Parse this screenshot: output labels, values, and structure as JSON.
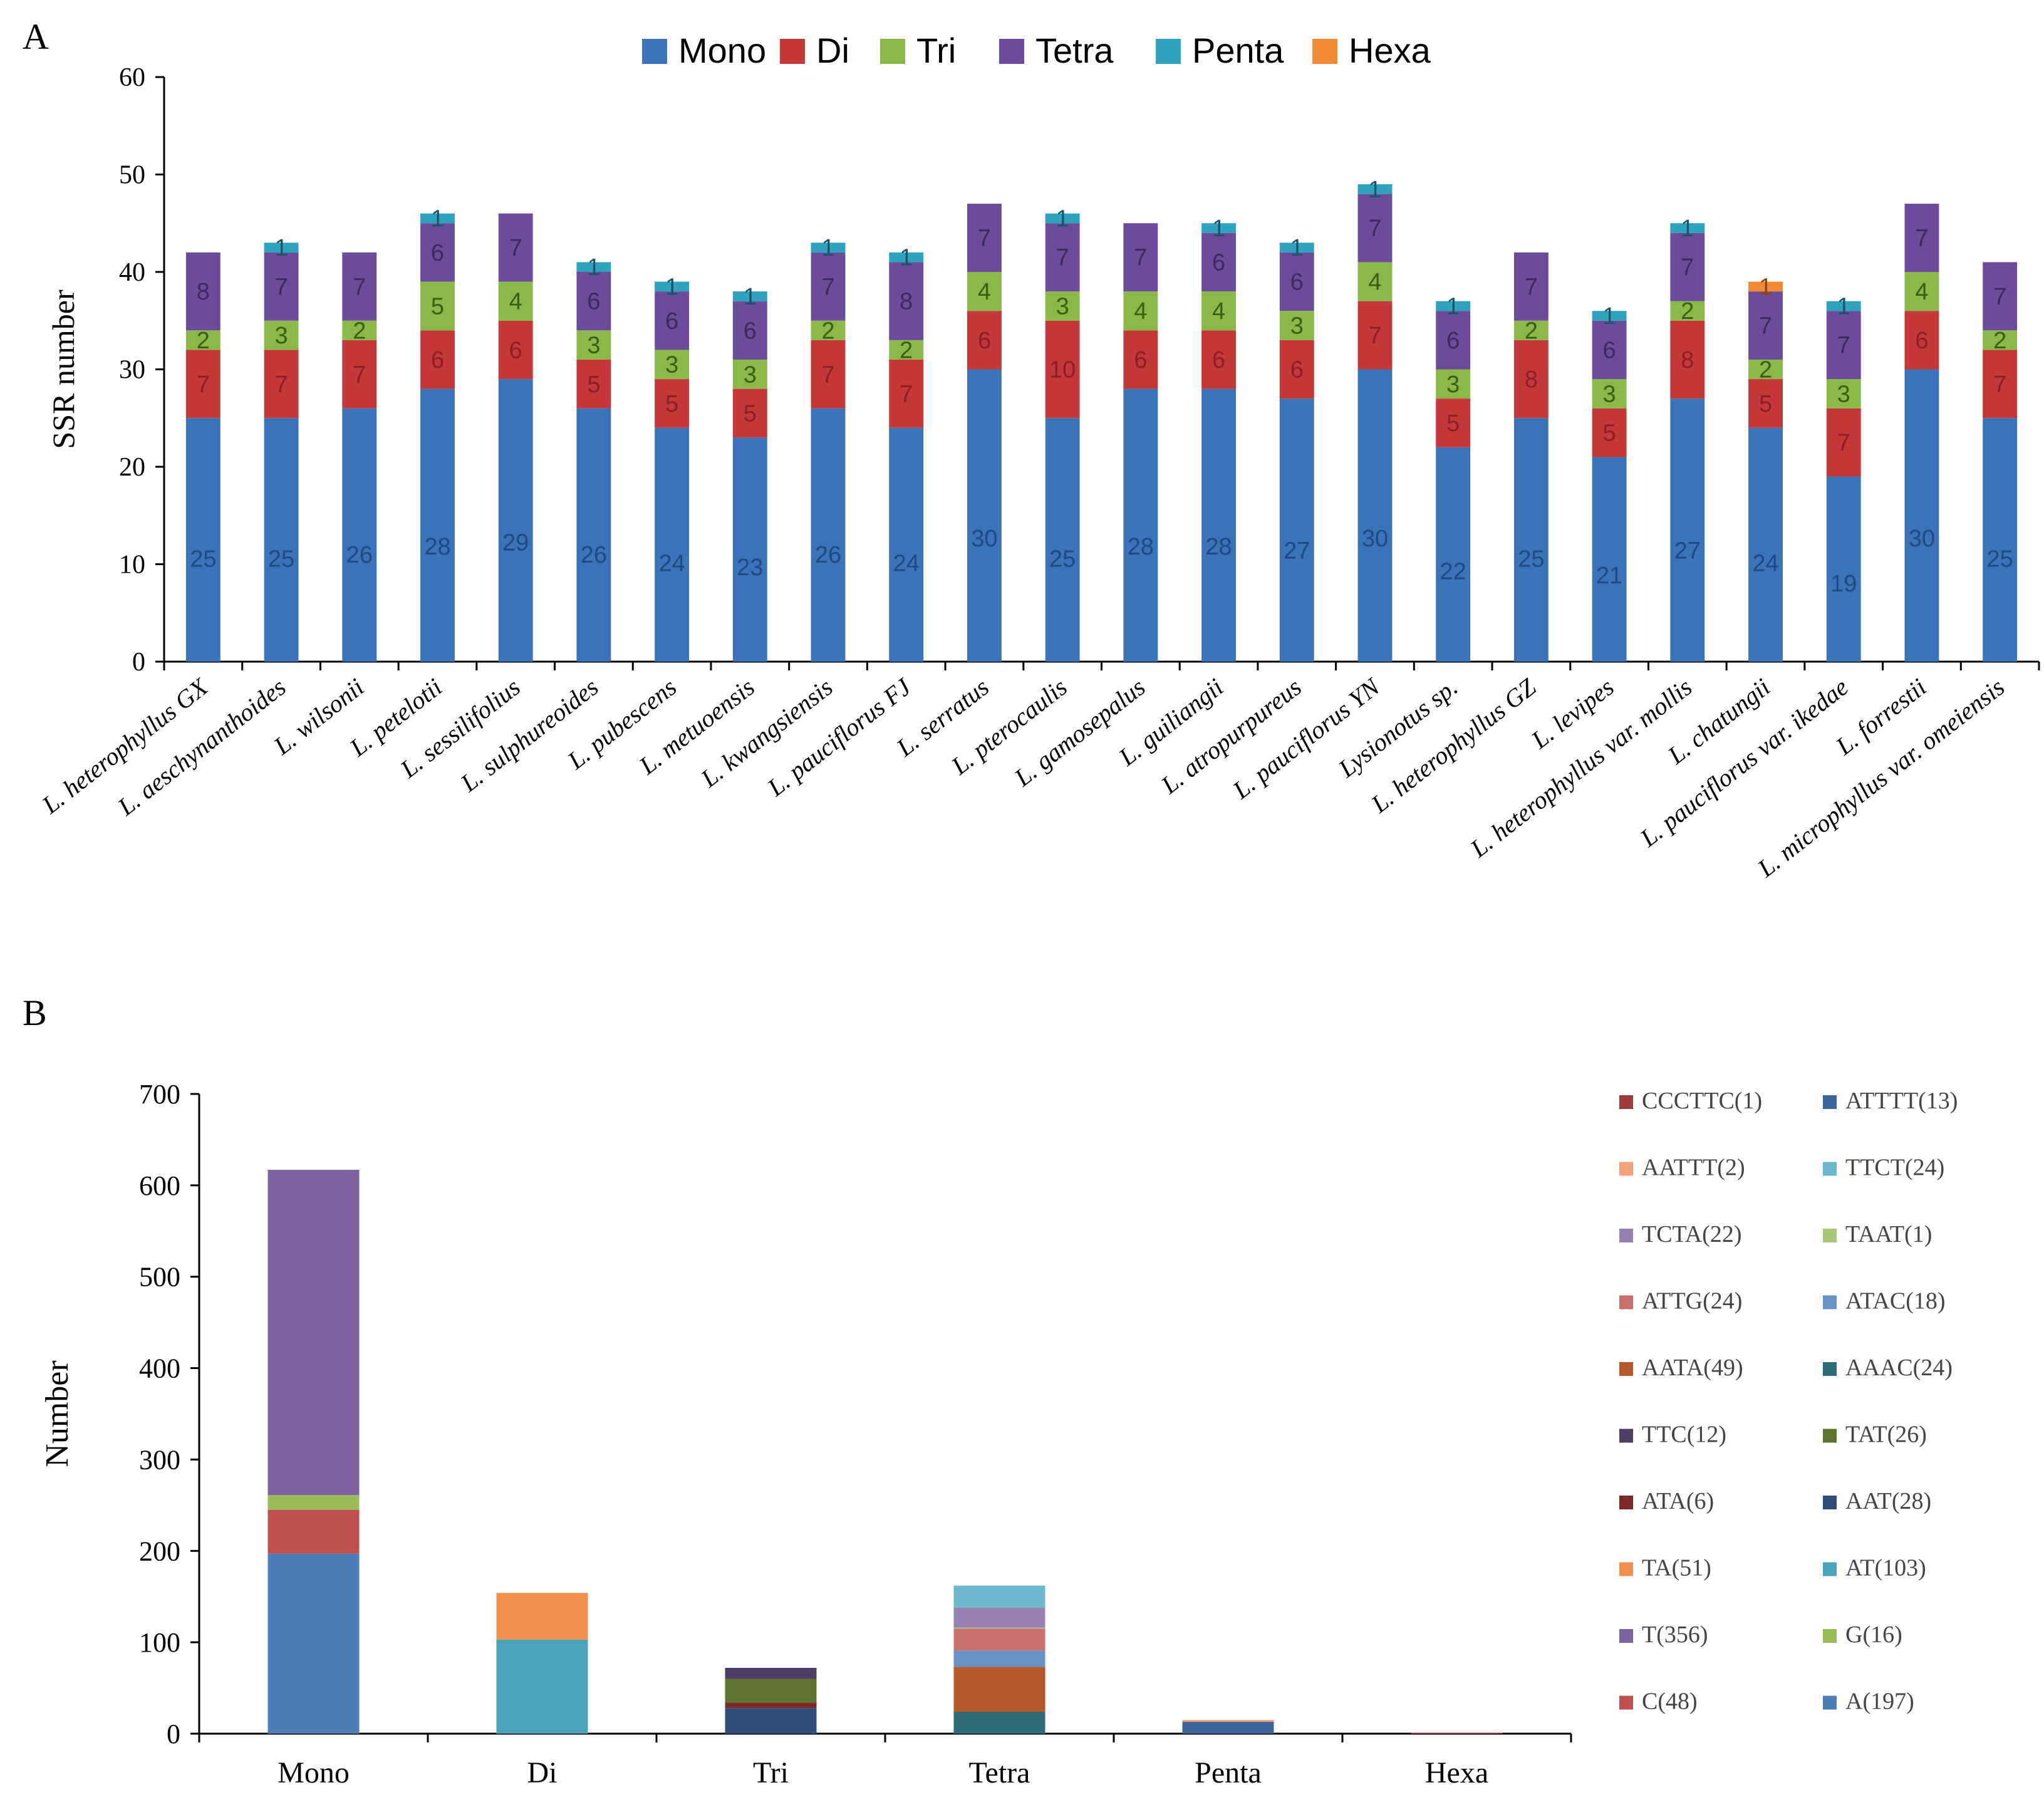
{
  "panel_labels": {
    "a": "A",
    "b": "B"
  },
  "chart_data": [
    {
      "type": "bar",
      "stacked": true,
      "panel": "A",
      "title": "",
      "xlabel": "",
      "ylabel": "SSR number",
      "ylim": [
        0,
        60
      ],
      "yticks": [
        0,
        10,
        20,
        30,
        40,
        50,
        60
      ],
      "legend_position": "top-center",
      "categories": [
        "L. heterophyllus GX",
        "L. aeschynanthoides",
        "L. wilsonii",
        "L. petelotii",
        "L. sessilifolius",
        "L. sulphureoides",
        "L. pubescens",
        "L. metuoensis",
        "L. kwangsiensis",
        "L. pauciflorus FJ",
        "L. serratus",
        "L. pterocaulis",
        "L. gamosepalus",
        "L. guiliangii",
        "L. atropurpureus",
        "L. pauciflorus YN",
        "Lysionotus sp.",
        "L. heterophyllus GZ",
        "L. levipes",
        "L. heterophyllus var. mollis",
        "L. chatungii",
        "L. pauciflorus var. ikedae",
        "L. forrestii",
        "L. microphyllus var. omeiensis"
      ],
      "series": [
        {
          "name": "Mono",
          "color": "#3b73b9",
          "label_color": "#1f4a82",
          "values": [
            25,
            25,
            26,
            28,
            29,
            26,
            24,
            23,
            26,
            24,
            30,
            25,
            28,
            28,
            27,
            30,
            22,
            25,
            21,
            27,
            24,
            19,
            30,
            25
          ]
        },
        {
          "name": "Di",
          "color": "#c5383a",
          "label_color": "#8e1e22",
          "values": [
            7,
            7,
            7,
            6,
            6,
            5,
            5,
            5,
            7,
            7,
            6,
            10,
            6,
            6,
            6,
            7,
            5,
            8,
            5,
            8,
            5,
            7,
            6,
            7
          ]
        },
        {
          "name": "Tri",
          "color": "#8ab94a",
          "label_color": "#3d5c16",
          "values": [
            2,
            3,
            2,
            5,
            4,
            3,
            3,
            3,
            2,
            2,
            4,
            3,
            4,
            4,
            3,
            4,
            3,
            2,
            3,
            2,
            2,
            3,
            4,
            2
          ]
        },
        {
          "name": "Tetra",
          "color": "#6c4c9a",
          "label_color": "#3b2a5e",
          "values": [
            8,
            7,
            7,
            6,
            7,
            6,
            6,
            6,
            7,
            8,
            7,
            7,
            7,
            6,
            6,
            7,
            6,
            7,
            6,
            7,
            7,
            7,
            7,
            7
          ]
        },
        {
          "name": "Penta",
          "color": "#2fa3be",
          "label_color": "#17566a",
          "values": [
            0,
            1,
            0,
            1,
            0,
            1,
            1,
            1,
            1,
            1,
            0,
            1,
            0,
            1,
            1,
            1,
            1,
            0,
            1,
            1,
            0,
            1,
            0,
            0
          ]
        },
        {
          "name": "Hexa",
          "color": "#f28a35",
          "label_color": "#8a4410",
          "values": [
            0,
            0,
            0,
            0,
            0,
            0,
            0,
            0,
            0,
            0,
            0,
            0,
            0,
            0,
            0,
            0,
            0,
            0,
            0,
            0,
            1,
            0,
            0,
            0
          ]
        }
      ]
    },
    {
      "type": "bar",
      "stacked": true,
      "panel": "B",
      "title": "",
      "xlabel": "",
      "ylabel": "Number",
      "ylim": [
        0,
        700
      ],
      "yticks": [
        0,
        100,
        200,
        300,
        400,
        500,
        600,
        700
      ],
      "legend_position": "right",
      "categories": [
        "Mono",
        "Di",
        "Tri",
        "Tetra",
        "Penta",
        "Hexa"
      ],
      "segments": [
        {
          "category": "Mono",
          "name": "A(197)",
          "value": 197,
          "color": "#4e7cb5"
        },
        {
          "category": "Mono",
          "name": "C(48)",
          "value": 48,
          "color": "#c0504d"
        },
        {
          "category": "Mono",
          "name": "G(16)",
          "value": 16,
          "color": "#9bbb59"
        },
        {
          "category": "Mono",
          "name": "T(356)",
          "value": 356,
          "color": "#7c629e"
        },
        {
          "category": "Di",
          "name": "AT(103)",
          "value": 103,
          "color": "#4aa3b8"
        },
        {
          "category": "Di",
          "name": "TA(51)",
          "value": 51,
          "color": "#f0904f"
        },
        {
          "category": "Tri",
          "name": "AAT(28)",
          "value": 28,
          "color": "#2e4e79"
        },
        {
          "category": "Tri",
          "name": "ATA(6)",
          "value": 6,
          "color": "#7d2927"
        },
        {
          "category": "Tri",
          "name": "TAT(26)",
          "value": 26,
          "color": "#5d7431"
        },
        {
          "category": "Tri",
          "name": "TTC(12)",
          "value": 12,
          "color": "#4e3d66"
        },
        {
          "category": "Tetra",
          "name": "AAAC(24)",
          "value": 24,
          "color": "#2e6b78"
        },
        {
          "category": "Tetra",
          "name": "AATA(49)",
          "value": 49,
          "color": "#b5592a"
        },
        {
          "category": "Tetra",
          "name": "ATAC(18)",
          "value": 18,
          "color": "#6a91c4"
        },
        {
          "category": "Tetra",
          "name": "ATTG(24)",
          "value": 24,
          "color": "#c96f6d"
        },
        {
          "category": "Tetra",
          "name": "TAAT(1)",
          "value": 1,
          "color": "#a9c77a"
        },
        {
          "category": "Tetra",
          "name": "TCTA(22)",
          "value": 22,
          "color": "#9781b3"
        },
        {
          "category": "Tetra",
          "name": "TTCT(24)",
          "value": 24,
          "color": "#6bb8cc"
        },
        {
          "category": "Penta",
          "name": "ATTTT(13)",
          "value": 13,
          "color": "#3e6599"
        },
        {
          "category": "Penta",
          "name": "AATTT(2)",
          "value": 2,
          "color": "#f2a37a"
        },
        {
          "category": "Hexa",
          "name": "CCCTTC(1)",
          "value": 1,
          "color": "#9e3b39"
        }
      ],
      "legend": [
        [
          "CCCTTC(1)",
          "ATTTT(13)"
        ],
        [
          "AATTT(2)",
          "TTCT(24)"
        ],
        [
          "TCTA(22)",
          "TAAT(1)"
        ],
        [
          "ATTG(24)",
          "ATAC(18)"
        ],
        [
          "AATA(49)",
          "AAAC(24)"
        ],
        [
          "TTC(12)",
          "TAT(26)"
        ],
        [
          "ATA(6)",
          "AAT(28)"
        ],
        [
          "TA(51)",
          "AT(103)"
        ],
        [
          "T(356)",
          "G(16)"
        ],
        [
          "C(48)",
          "A(197)"
        ]
      ]
    }
  ]
}
